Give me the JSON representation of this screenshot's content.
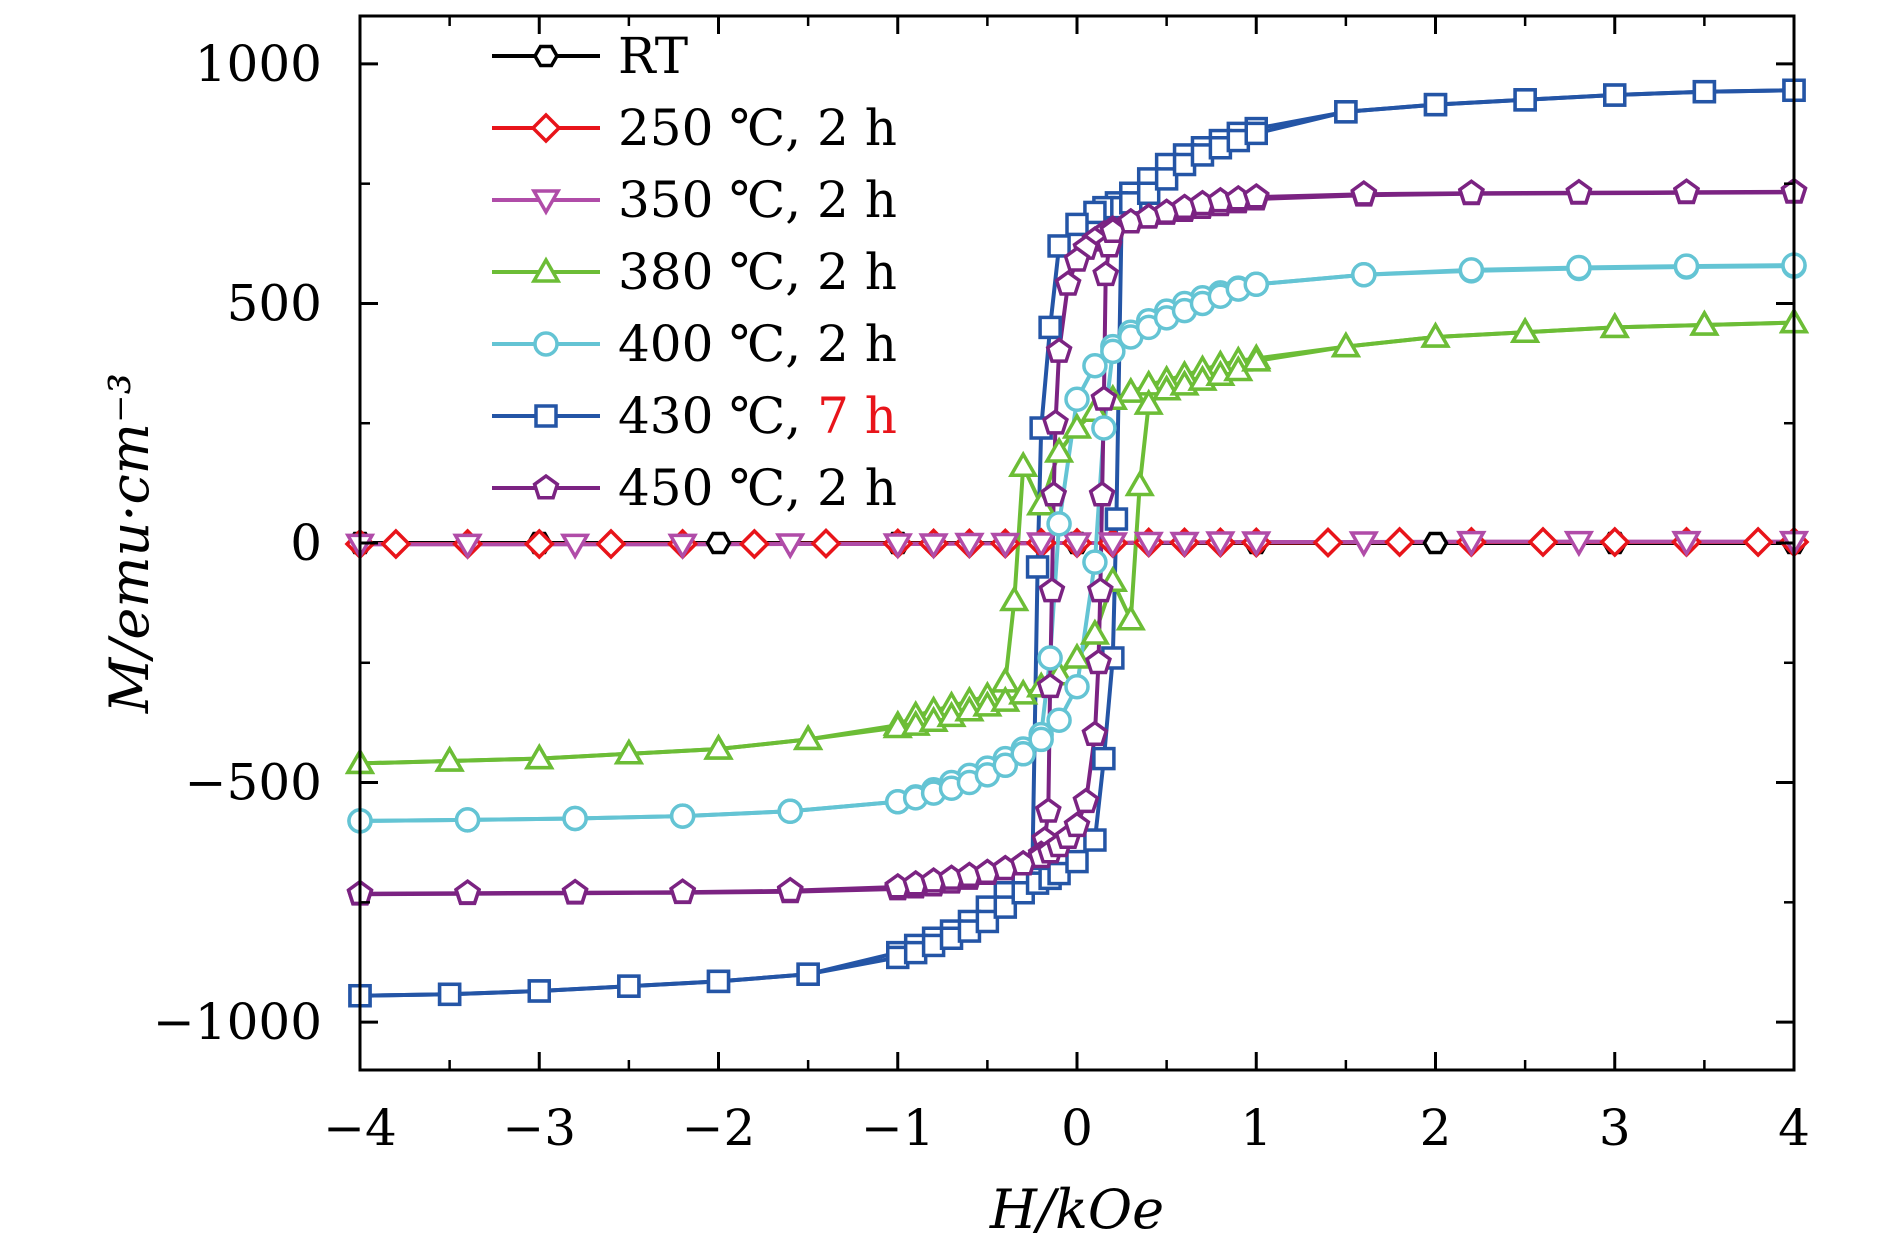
{
  "chart_data": {
    "type": "line",
    "xlabel": "H/kOe",
    "ylabel": "M/emu·cm⁻³",
    "xlim": [
      -4,
      4
    ],
    "ylim": [
      -1100,
      1100
    ],
    "x_ticks": [
      "−4",
      "−3",
      "−2",
      "−1",
      "0",
      "1",
      "2",
      "3",
      "4"
    ],
    "y_ticks": [
      "−1000",
      "−500",
      "0",
      "500",
      "1000"
    ],
    "grid": false,
    "legend_position": "top-left",
    "series": [
      {
        "name": "RT",
        "color": "#000000",
        "marker": "hexagon",
        "curves": [
          {
            "x": [
              -4,
              -3,
              -2,
              -1,
              0,
              1,
              2,
              3,
              4
            ],
            "y": [
              0,
              0,
              0,
              0,
              0,
              0,
              0,
              0,
              0
            ]
          }
        ]
      },
      {
        "name": "250 ℃, 2 h",
        "color": "#e8141a",
        "marker": "diamond",
        "curves": [
          {
            "x": [
              -4,
              -3.8,
              -3.4,
              -3,
              -2.6,
              -2.2,
              -1.8,
              -1.4,
              -1,
              -0.8,
              -0.6,
              -0.4,
              -0.2,
              0,
              0.2,
              0.4,
              0.6,
              0.8,
              1,
              1.4,
              1.8,
              2.2,
              2.6,
              3,
              3.4,
              3.8,
              4
            ],
            "y": [
              -2,
              -2,
              -2,
              -2,
              -2,
              -2,
              -2,
              -1,
              -1,
              -1,
              -1,
              -1,
              0,
              0,
              0,
              1,
              1,
              1,
              1,
              1,
              2,
              2,
              2,
              2,
              2,
              2,
              2
            ]
          }
        ]
      },
      {
        "name": "350 ℃, 2 h",
        "color": "#b04ca8",
        "marker": "triangle-down",
        "curves": [
          {
            "x": [
              -4,
              -3.4,
              -2.8,
              -2.2,
              -1.6,
              -1,
              -0.8,
              -0.6,
              -0.4,
              -0.2,
              0,
              0.2,
              0.4,
              0.6,
              0.8,
              1,
              1.6,
              2.2,
              2.8,
              3.4,
              4
            ],
            "y": [
              -3,
              -3,
              -3,
              -3,
              -2,
              -2,
              -2,
              -1,
              -1,
              0,
              0,
              0,
              1,
              1,
              2,
              2,
              2,
              3,
              3,
              3,
              3
            ]
          }
        ]
      },
      {
        "name": "380 ℃, 2 h",
        "color": "#6cbd36",
        "marker": "triangle-up",
        "curves": [
          {
            "x": [
              4,
              3.5,
              3,
              2.5,
              2,
              1.5,
              1,
              0.9,
              0.8,
              0.7,
              0.6,
              0.5,
              0.4,
              0.3,
              0.2,
              0.1,
              0,
              -0.1,
              -0.2,
              -0.3,
              -0.35,
              -0.4,
              -0.5,
              -0.6,
              -0.7,
              -0.8,
              -0.9,
              -1,
              -1.5,
              -2,
              -2.5,
              -3,
              -3.5,
              -4
            ],
            "y": [
              460,
              455,
              450,
              440,
              430,
              410,
              385,
              380,
              372,
              362,
              350,
              340,
              330,
              315,
              300,
              275,
              240,
              190,
              80,
              160,
              -120,
              -290,
              -320,
              -330,
              -340,
              -350,
              -360,
              -380,
              -410,
              -430,
              -440,
              -450,
              -455,
              -460
            ]
          },
          {
            "x": [
              -4,
              -3.5,
              -3,
              -2.5,
              -2,
              -1.5,
              -1,
              -0.9,
              -0.8,
              -0.7,
              -0.6,
              -0.5,
              -0.4,
              -0.3,
              -0.2,
              -0.1,
              0,
              0.1,
              0.2,
              0.3,
              0.35,
              0.4,
              0.5,
              0.6,
              0.7,
              0.8,
              0.9,
              1,
              1.5,
              2,
              2.5,
              3,
              3.5,
              4
            ],
            "y": [
              -460,
              -455,
              -450,
              -440,
              -430,
              -410,
              -385,
              -380,
              -372,
              -362,
              -350,
              -340,
              -330,
              -315,
              -300,
              -275,
              -240,
              -190,
              -80,
              -160,
              120,
              290,
              320,
              330,
              340,
              350,
              360,
              380,
              410,
              430,
              440,
              450,
              455,
              460
            ]
          }
        ]
      },
      {
        "name": "400 ℃, 2 h",
        "color": "#64c4d4",
        "marker": "circle",
        "curves": [
          {
            "x": [
              4,
              3.4,
              2.8,
              2.2,
              1.6,
              1,
              0.9,
              0.8,
              0.7,
              0.6,
              0.5,
              0.4,
              0.3,
              0.2,
              0.1,
              0,
              -0.1,
              -0.15,
              -0.2,
              -0.3,
              -0.4,
              -0.5,
              -0.6,
              -0.7,
              -0.8,
              -0.9,
              -1,
              -1.6,
              -2.2,
              -2.8,
              -3.4,
              -4
            ],
            "y": [
              578,
              576,
              573,
              568,
              560,
              540,
              532,
              522,
              512,
              500,
              484,
              464,
              440,
              410,
              370,
              300,
              40,
              -240,
              -400,
              -430,
              -450,
              -470,
              -485,
              -500,
              -515,
              -530,
              -540,
              -560,
              -570,
              -575,
              -578,
              -580
            ]
          },
          {
            "x": [
              -4,
              -3.4,
              -2.8,
              -2.2,
              -1.6,
              -1,
              -0.9,
              -0.8,
              -0.7,
              -0.6,
              -0.5,
              -0.4,
              -0.3,
              -0.2,
              -0.1,
              0,
              0.1,
              0.15,
              0.2,
              0.3,
              0.4,
              0.5,
              0.6,
              0.7,
              0.8,
              0.9,
              1,
              1.6,
              2.2,
              2.8,
              3.4,
              4
            ],
            "y": [
              -580,
              -578,
              -575,
              -570,
              -560,
              -540,
              -532,
              -522,
              -512,
              -500,
              -484,
              -464,
              -440,
              -410,
              -370,
              -300,
              -40,
              240,
              400,
              430,
              450,
              470,
              485,
              500,
              515,
              530,
              540,
              560,
              570,
              575,
              578,
              580
            ]
          }
        ]
      },
      {
        "name": "430 ℃, 7 h",
        "color": "#2455a6",
        "marker": "square",
        "curves": [
          {
            "x": [
              4,
              3.5,
              3,
              2.5,
              2,
              1.5,
              1,
              0.9,
              0.8,
              0.7,
              0.6,
              0.5,
              0.4,
              0.3,
              0.22,
              0.15,
              0.1,
              0,
              -0.1,
              -0.15,
              -0.2,
              -0.22,
              -0.25,
              -0.3,
              -0.4,
              -0.5,
              -0.6,
              -0.7,
              -0.8,
              -0.9,
              -1,
              -1.5,
              -2,
              -2.5,
              -3,
              -3.5,
              -4
            ],
            "y": [
              945,
              942,
              935,
              925,
              915,
              900,
              865,
              855,
              840,
              825,
              810,
              790,
              760,
              730,
              710,
              700,
              690,
              665,
              620,
              450,
              240,
              -50,
              -700,
              -710,
              -730,
              -760,
              -790,
              -810,
              -825,
              -840,
              -855,
              -900,
              -915,
              -925,
              -935,
              -942,
              -945
            ]
          },
          {
            "x": [
              -4,
              -3.5,
              -3,
              -2.5,
              -2,
              -1.5,
              -1,
              -0.9,
              -0.8,
              -0.7,
              -0.6,
              -0.5,
              -0.4,
              -0.3,
              -0.22,
              -0.15,
              -0.1,
              0,
              0.1,
              0.15,
              0.2,
              0.22,
              0.25,
              0.3,
              0.4,
              0.5,
              0.6,
              0.7,
              0.8,
              0.9,
              1,
              1.5,
              2,
              2.5,
              3,
              3.5,
              4
            ],
            "y": [
              -945,
              -942,
              -935,
              -925,
              -915,
              -900,
              -865,
              -855,
              -840,
              -825,
              -810,
              -790,
              -760,
              -730,
              -710,
              -700,
              -690,
              -665,
              -620,
              -450,
              -240,
              50,
              700,
              710,
              730,
              760,
              790,
              810,
              825,
              840,
              855,
              900,
              915,
              925,
              935,
              942,
              945
            ]
          }
        ]
      },
      {
        "name": "450 ℃, 2 h",
        "color": "#7b2382",
        "marker": "pentagon",
        "curves": [
          {
            "x": [
              4,
              3.4,
              2.8,
              2.2,
              1.6,
              1,
              0.9,
              0.8,
              0.7,
              0.6,
              0.5,
              0.4,
              0.3,
              0.2,
              0.15,
              0.1,
              0.05,
              0,
              -0.05,
              -0.1,
              -0.12,
              -0.13,
              -0.14,
              -0.15,
              -0.16,
              -0.18,
              -0.2,
              -0.3,
              -0.4,
              -0.5,
              -0.6,
              -0.7,
              -0.8,
              -0.9,
              -1,
              -1.6,
              -2.2,
              -2.8,
              -3.4,
              -4
            ],
            "y": [
              732,
              731,
              730,
              729,
              726,
              718,
              712,
              706,
              700,
              694,
              688,
              680,
              670,
              655,
              645,
              632,
              615,
              590,
              540,
              400,
              250,
              100,
              -100,
              -300,
              -560,
              -620,
              -650,
              -670,
              -680,
              -690,
              -700,
              -708,
              -714,
              -718,
              -722,
              -728,
              -730,
              -731,
              -732,
              -733
            ]
          },
          {
            "x": [
              -4,
              -3.4,
              -2.8,
              -2.2,
              -1.6,
              -1,
              -0.9,
              -0.8,
              -0.7,
              -0.6,
              -0.5,
              -0.4,
              -0.3,
              -0.2,
              -0.15,
              -0.1,
              -0.05,
              0,
              0.05,
              0.1,
              0.12,
              0.13,
              0.14,
              0.15,
              0.16,
              0.18,
              0.2,
              0.3,
              0.4,
              0.5,
              0.6,
              0.7,
              0.8,
              0.9,
              1,
              1.6,
              2.2,
              2.8,
              3.4,
              4
            ],
            "y": [
              -732,
              -731,
              -730,
              -729,
              -726,
              -718,
              -712,
              -706,
              -700,
              -694,
              -688,
              -680,
              -670,
              -655,
              -645,
              -632,
              -615,
              -590,
              -540,
              -400,
              -250,
              -100,
              100,
              300,
              560,
              620,
              650,
              670,
              680,
              690,
              700,
              708,
              714,
              718,
              722,
              728,
              730,
              731,
              732,
              733
            ]
          }
        ]
      }
    ]
  },
  "legend_label_parts": [
    {
      "main": "RT",
      "highlight": ""
    },
    {
      "main": "250 ℃, 2 h",
      "highlight": ""
    },
    {
      "main": "350 ℃, 2 h",
      "highlight": ""
    },
    {
      "main": "380 ℃, 2 h",
      "highlight": ""
    },
    {
      "main": "400 ℃, 2 h",
      "highlight": ""
    },
    {
      "main": "430 ℃, ",
      "highlight": "7 h"
    },
    {
      "main": "450 ℃, 2 h",
      "highlight": ""
    }
  ],
  "highlight_color": "#e8141a"
}
